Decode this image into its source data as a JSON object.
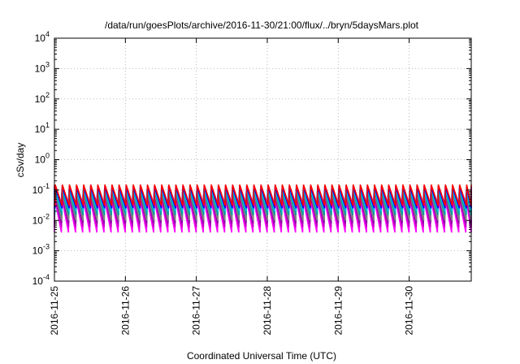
{
  "chart_data": {
    "type": "line",
    "title": "/data/run/goesPlots/archive/2016-11-30/21:00/flux/../bryn/5daysMars.plot",
    "xlabel": "Coordinated Universal Time (UTC)",
    "ylabel": "cSv/day",
    "yscale": "log",
    "ylim": [
      0.0001,
      10000
    ],
    "xlim": [
      "2016-11-25T00:00",
      "2016-11-30T21:00"
    ],
    "x_ticks": [
      "2016-11-25",
      "2016-11-26",
      "2016-11-27",
      "2016-11-28",
      "2016-11-29",
      "2016-11-30"
    ],
    "y_ticks": [
      {
        "value": 0.0001,
        "base": "10",
        "exp": "-4"
      },
      {
        "value": 0.001,
        "base": "10",
        "exp": "-3"
      },
      {
        "value": 0.01,
        "base": "10",
        "exp": "-2"
      },
      {
        "value": 0.1,
        "base": "10",
        "exp": "-1"
      },
      {
        "value": 1,
        "base": "10",
        "exp": "0"
      },
      {
        "value": 10,
        "base": "10",
        "exp": "1"
      },
      {
        "value": 100,
        "base": "10",
        "exp": "2"
      },
      {
        "value": 1000,
        "base": "10",
        "exp": "3"
      },
      {
        "value": 10000,
        "base": "10",
        "exp": "4"
      }
    ],
    "grid": true,
    "cycles_per_day": 10,
    "series": [
      {
        "color": "#ff00ff",
        "peak": 0.06,
        "trough": 0.004
      },
      {
        "color": "#c000c0",
        "peak": 0.07,
        "trough": 0.006
      },
      {
        "color": "#9000b0",
        "peak": 0.08,
        "trough": 0.008
      },
      {
        "color": "#808080",
        "peak": 0.09,
        "trough": 0.01
      },
      {
        "color": "#00a0a0",
        "peak": 0.1,
        "trough": 0.015
      },
      {
        "color": "#00c0e0",
        "peak": 0.11,
        "trough": 0.02
      },
      {
        "color": "#0000ff",
        "peak": 0.13,
        "trough": 0.025
      },
      {
        "color": "#ff0000",
        "peak": 0.15,
        "trough": 0.03
      }
    ]
  }
}
